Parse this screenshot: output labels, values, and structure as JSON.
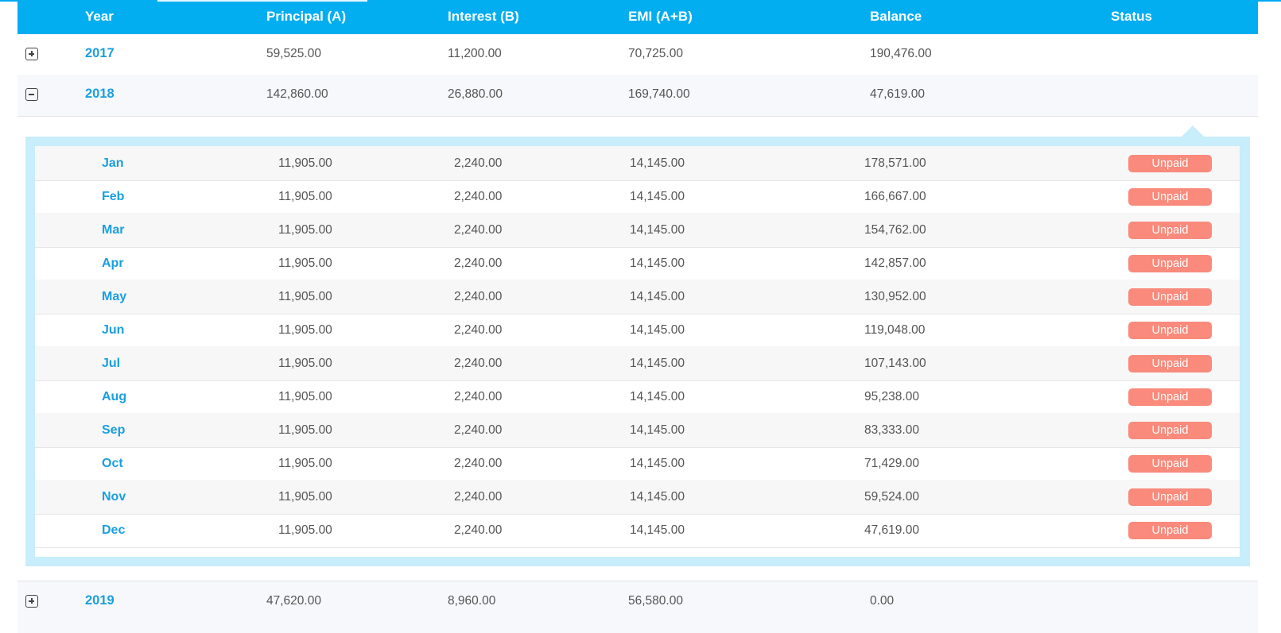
{
  "header": {
    "columns": [
      "Year",
      "Principal (A)",
      "Interest (B)",
      "EMI (A+B)",
      "Balance",
      "Status"
    ]
  },
  "icons": {
    "expand": "plus-square-icon",
    "collapse": "minus-square-icon"
  },
  "colors": {
    "header_bg": "#03aef0",
    "accent": "#1a9fdf",
    "unpaid_badge": "#f98a7c",
    "panel_bg": "#c8edfb"
  },
  "years": [
    {
      "year": "2017",
      "principal": "59,525.00",
      "interest": "11,200.00",
      "emi": "70,725.00",
      "balance": "190,476.00",
      "expanded": false
    },
    {
      "year": "2018",
      "principal": "142,860.00",
      "interest": "26,880.00",
      "emi": "169,740.00",
      "balance": "47,619.00",
      "expanded": true
    },
    {
      "year": "2019",
      "principal": "47,620.00",
      "interest": "8,960.00",
      "emi": "56,580.00",
      "balance": "0.00",
      "expanded": false
    }
  ],
  "months": [
    {
      "month": "Jan",
      "principal": "11,905.00",
      "interest": "2,240.00",
      "emi": "14,145.00",
      "balance": "178,571.00",
      "status": "Unpaid"
    },
    {
      "month": "Feb",
      "principal": "11,905.00",
      "interest": "2,240.00",
      "emi": "14,145.00",
      "balance": "166,667.00",
      "status": "Unpaid"
    },
    {
      "month": "Mar",
      "principal": "11,905.00",
      "interest": "2,240.00",
      "emi": "14,145.00",
      "balance": "154,762.00",
      "status": "Unpaid"
    },
    {
      "month": "Apr",
      "principal": "11,905.00",
      "interest": "2,240.00",
      "emi": "14,145.00",
      "balance": "142,857.00",
      "status": "Unpaid"
    },
    {
      "month": "May",
      "principal": "11,905.00",
      "interest": "2,240.00",
      "emi": "14,145.00",
      "balance": "130,952.00",
      "status": "Unpaid"
    },
    {
      "month": "Jun",
      "principal": "11,905.00",
      "interest": "2,240.00",
      "emi": "14,145.00",
      "balance": "119,048.00",
      "status": "Unpaid"
    },
    {
      "month": "Jul",
      "principal": "11,905.00",
      "interest": "2,240.00",
      "emi": "14,145.00",
      "balance": "107,143.00",
      "status": "Unpaid"
    },
    {
      "month": "Aug",
      "principal": "11,905.00",
      "interest": "2,240.00",
      "emi": "14,145.00",
      "balance": "95,238.00",
      "status": "Unpaid"
    },
    {
      "month": "Sep",
      "principal": "11,905.00",
      "interest": "2,240.00",
      "emi": "14,145.00",
      "balance": "83,333.00",
      "status": "Unpaid"
    },
    {
      "month": "Oct",
      "principal": "11,905.00",
      "interest": "2,240.00",
      "emi": "14,145.00",
      "balance": "71,429.00",
      "status": "Unpaid"
    },
    {
      "month": "Nov",
      "principal": "11,905.00",
      "interest": "2,240.00",
      "emi": "14,145.00",
      "balance": "59,524.00",
      "status": "Unpaid"
    },
    {
      "month": "Dec",
      "principal": "11,905.00",
      "interest": "2,240.00",
      "emi": "14,145.00",
      "balance": "47,619.00",
      "status": "Unpaid"
    }
  ]
}
